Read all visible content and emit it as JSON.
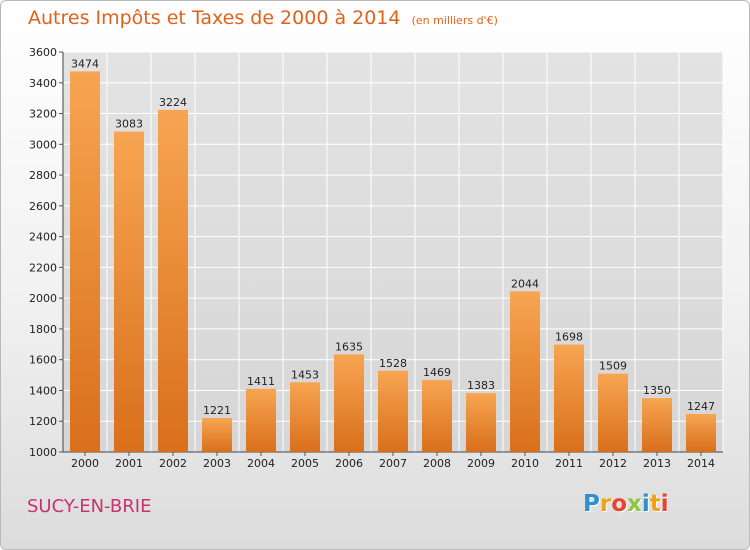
{
  "chart_data": {
    "type": "bar",
    "title": "Autres Impôts et Taxes de 2000 à 2014",
    "unit": "(en milliers d'€)",
    "categories": [
      "2000",
      "2001",
      "2002",
      "2003",
      "2004",
      "2005",
      "2006",
      "2007",
      "2008",
      "2009",
      "2010",
      "2011",
      "2012",
      "2013",
      "2014"
    ],
    "values": [
      3474,
      3083,
      3224,
      1221,
      1411,
      1453,
      1635,
      1528,
      1469,
      1383,
      2044,
      1698,
      1509,
      1350,
      1247
    ],
    "ylim": [
      1000,
      3600
    ],
    "yticks": [
      1000,
      1200,
      1400,
      1600,
      1800,
      2000,
      2200,
      2400,
      2600,
      2800,
      3000,
      3200,
      3400,
      3600
    ],
    "grid": true,
    "colors": {
      "bar_light": "#f7a552",
      "bar_dark": "#d96f1b",
      "title": "#e0621a",
      "grid": "#ffffff"
    }
  },
  "footer": {
    "city": "SUCY-EN-BRIE",
    "logo": {
      "text": "Proxiti",
      "letters": [
        {
          "ch": "P",
          "color": "#2f8fd0"
        },
        {
          "ch": "r",
          "color": "#f0a01a"
        },
        {
          "ch": "o",
          "color": "#e8432e"
        },
        {
          "ch": "x",
          "color": "#8dc63f"
        },
        {
          "ch": "i",
          "color": "#2f8fd0"
        },
        {
          "ch": "t",
          "color": "#f0a01a"
        },
        {
          "ch": "i",
          "color": "#e8432e"
        }
      ]
    }
  }
}
